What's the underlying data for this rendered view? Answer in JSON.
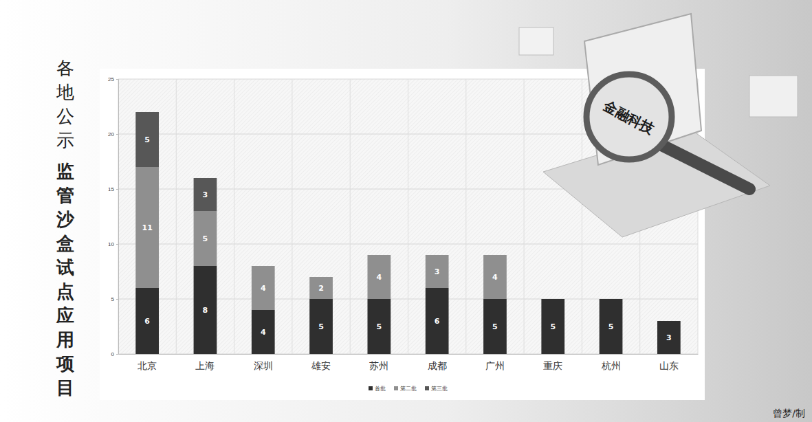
{
  "chart_data": {
    "type": "bar",
    "stacked": true,
    "data_labels": true,
    "grid": true,
    "legend": "bottom",
    "title": "各地公示",
    "subtitle": "监管沙盒试点应用项目",
    "annotations": [
      "金融科技",
      "曾梦/制"
    ],
    "categories": [
      "北京",
      "上海",
      "深圳",
      "雄安",
      "苏州",
      "成都",
      "广州",
      "重庆",
      "杭州",
      "山东"
    ],
    "series": [
      {
        "name": "首批",
        "color": "#2f2f2f",
        "values": [
          6,
          8,
          4,
          5,
          5,
          6,
          5,
          5,
          5,
          3
        ]
      },
      {
        "name": "第二批",
        "color": "#8f8f8f",
        "values": [
          11,
          5,
          4,
          2,
          4,
          3,
          4,
          null,
          null,
          null
        ]
      },
      {
        "name": "第三批",
        "color": "#575757",
        "values": [
          5,
          3,
          null,
          null,
          null,
          null,
          null,
          null,
          null,
          null
        ]
      }
    ],
    "ylim": [
      0,
      25
    ],
    "yticks": [
      0,
      5,
      10,
      15,
      20,
      25
    ]
  }
}
